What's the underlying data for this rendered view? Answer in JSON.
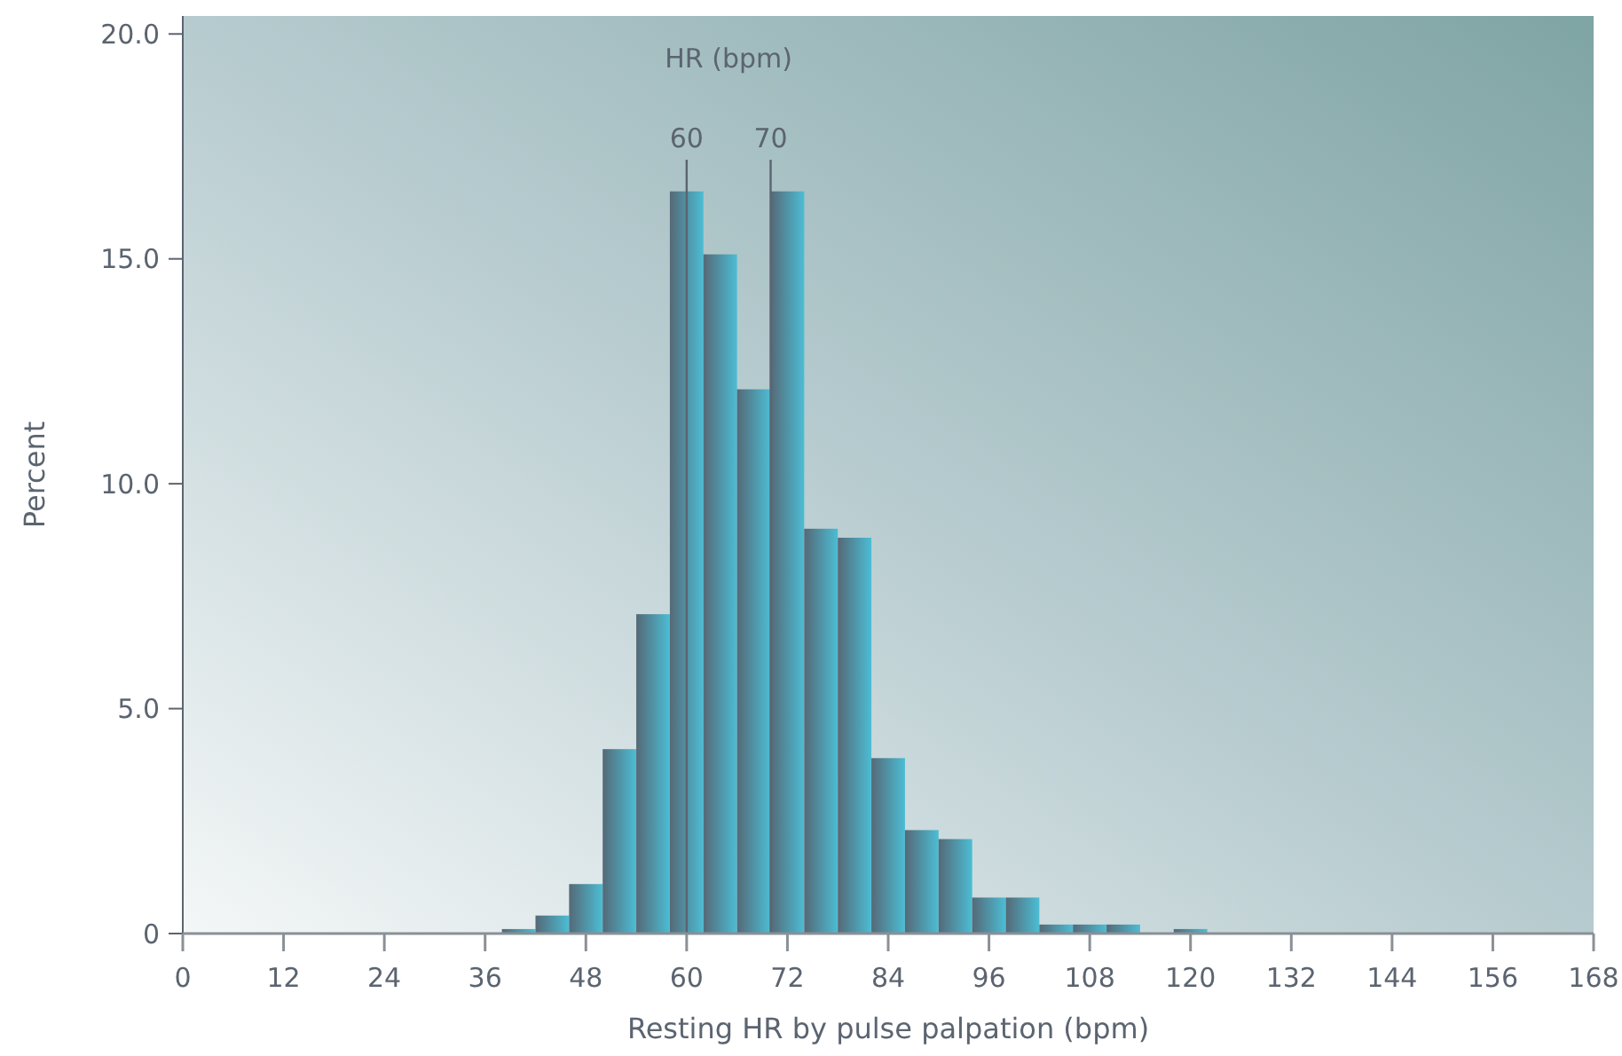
{
  "chart_data": {
    "type": "histogram",
    "xlabel": "Resting HR by pulse palpation (bpm)",
    "ylabel": "Percent",
    "bins": [
      38,
      42,
      46,
      50,
      54,
      58,
      62,
      66,
      70,
      74,
      78,
      82,
      86,
      90,
      94,
      98,
      102,
      106,
      110,
      114,
      118,
      122
    ],
    "values": [
      0.1,
      0.4,
      1.1,
      4.1,
      7.1,
      16.5,
      15.1,
      12.1,
      16.5,
      9.0,
      8.8,
      3.9,
      2.3,
      2.1,
      0.8,
      0.8,
      0.2,
      0.2,
      0.2,
      0,
      0.1
    ],
    "color": "#4cbdd4",
    "xlim": [
      0,
      168
    ],
    "xticks": [
      0,
      12,
      24,
      36,
      48,
      60,
      72,
      84,
      96,
      108,
      120,
      132,
      144,
      156,
      168
    ],
    "ylim": [
      0,
      20.4
    ],
    "yticks": [
      {
        "value": 0,
        "label": "0"
      },
      {
        "value": 5,
        "label": "5.0"
      },
      {
        "value": 10,
        "label": "10.0"
      },
      {
        "value": 15,
        "label": "15.0"
      },
      {
        "value": 20,
        "label": "20.0"
      }
    ],
    "ref_lines": [
      {
        "axis": "x",
        "value": 60,
        "label": "60"
      },
      {
        "axis": "x",
        "value": 70,
        "label": "70"
      }
    ],
    "annotations": [
      "HR (bpm)"
    ],
    "grid": false
  }
}
